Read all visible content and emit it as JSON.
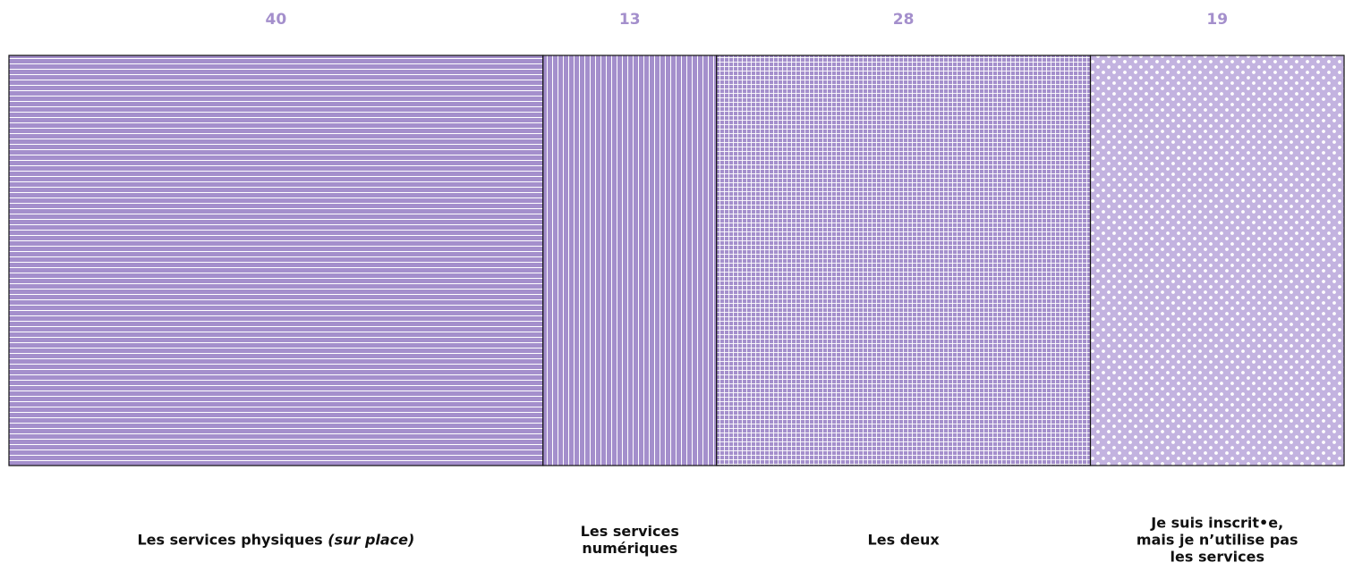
{
  "chart_data": {
    "type": "stacked-bar",
    "categories": [
      "Les services physiques (sur place)",
      "Les services numériques",
      "Les deux",
      "Je suis inscrit•e, mais je n’utilise pas les services"
    ],
    "values": [
      40,
      13,
      28,
      19
    ],
    "colors": [
      "#a48fcc",
      "#a48fcc",
      "#a48fcc",
      "#c3b3e0"
    ],
    "patterns": [
      "horizontal",
      "vertical",
      "grid",
      "dots"
    ],
    "xlim": [
      0,
      100
    ]
  }
}
